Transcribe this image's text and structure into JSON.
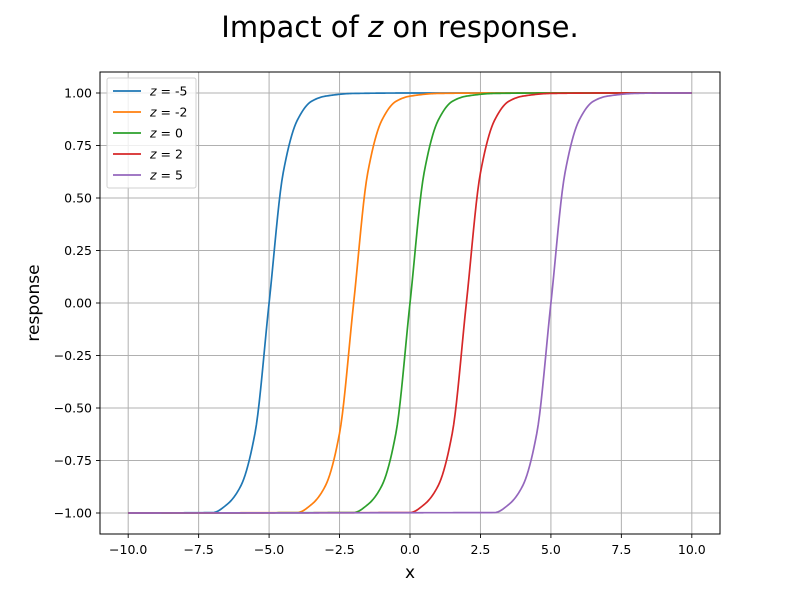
{
  "chart_data": {
    "type": "line",
    "title": {
      "prefix": "Impact of ",
      "variable": "z",
      "suffix": " on response."
    },
    "xlabel": "x",
    "ylabel": "response",
    "xlim": [
      -11.0,
      11.0
    ],
    "ylim": [
      -1.1,
      1.1
    ],
    "xticks": [
      -10.0,
      -7.5,
      -5.0,
      -2.5,
      0.0,
      2.5,
      5.0,
      7.5,
      10.0
    ],
    "xtick_labels": [
      "−10.0",
      "−7.5",
      "−5.0",
      "−2.5",
      "0.0",
      "2.5",
      "5.0",
      "7.5",
      "10.0"
    ],
    "yticks": [
      -1.0,
      -0.75,
      -0.5,
      -0.25,
      0.0,
      0.25,
      0.5,
      0.75,
      1.0
    ],
    "ytick_labels": [
      "−1.00",
      "−0.75",
      "−0.50",
      "−0.25",
      "0.00",
      "0.25",
      "0.50",
      "0.75",
      "1.00"
    ],
    "grid": true,
    "legend_position": "top-left",
    "series": [
      {
        "name": "-5",
        "var": "z",
        "eq": " = ",
        "color": "#1f77b4",
        "x": [
          -10,
          -7,
          -6.5,
          -6,
          -5.5,
          -5,
          -4.5,
          -4,
          -3.5,
          -3,
          -2,
          0,
          10
        ],
        "y": [
          -1.0,
          -0.998,
          -0.96,
          -0.87,
          -0.62,
          0.0,
          0.62,
          0.87,
          0.96,
          0.985,
          0.998,
          1.0,
          1.0
        ]
      },
      {
        "name": "-2",
        "var": "z",
        "eq": " = ",
        "color": "#ff7f0e",
        "x": [
          -10,
          -4,
          -3.5,
          -3,
          -2.5,
          -2,
          -1.5,
          -1,
          -0.5,
          0,
          1,
          3,
          10
        ],
        "y": [
          -1.0,
          -0.998,
          -0.96,
          -0.87,
          -0.62,
          0.0,
          0.62,
          0.87,
          0.96,
          0.985,
          0.998,
          1.0,
          1.0
        ]
      },
      {
        "name": "0",
        "var": "z",
        "eq": " = ",
        "color": "#2ca02c",
        "x": [
          -10,
          -2,
          -1.5,
          -1,
          -0.5,
          0,
          0.5,
          1,
          1.5,
          2,
          3,
          5,
          10
        ],
        "y": [
          -1.0,
          -0.998,
          -0.96,
          -0.87,
          -0.62,
          0.0,
          0.62,
          0.87,
          0.96,
          0.985,
          0.998,
          1.0,
          1.0
        ]
      },
      {
        "name": "2",
        "var": "z",
        "eq": " = ",
        "color": "#d62728",
        "x": [
          -10,
          0,
          0.5,
          1,
          1.5,
          2,
          2.5,
          3,
          3.5,
          4,
          5,
          7,
          10
        ],
        "y": [
          -1.0,
          -0.998,
          -0.96,
          -0.87,
          -0.62,
          0.0,
          0.62,
          0.87,
          0.96,
          0.985,
          0.998,
          1.0,
          1.0
        ]
      },
      {
        "name": "5",
        "var": "z",
        "eq": " = ",
        "color": "#9467bd",
        "x": [
          -10,
          3,
          3.5,
          4,
          4.5,
          5,
          5.5,
          6,
          6.5,
          7,
          8,
          9,
          10
        ],
        "y": [
          -1.0,
          -0.998,
          -0.96,
          -0.87,
          -0.62,
          0.0,
          0.62,
          0.87,
          0.96,
          0.985,
          0.998,
          1.0,
          1.0
        ]
      }
    ]
  }
}
